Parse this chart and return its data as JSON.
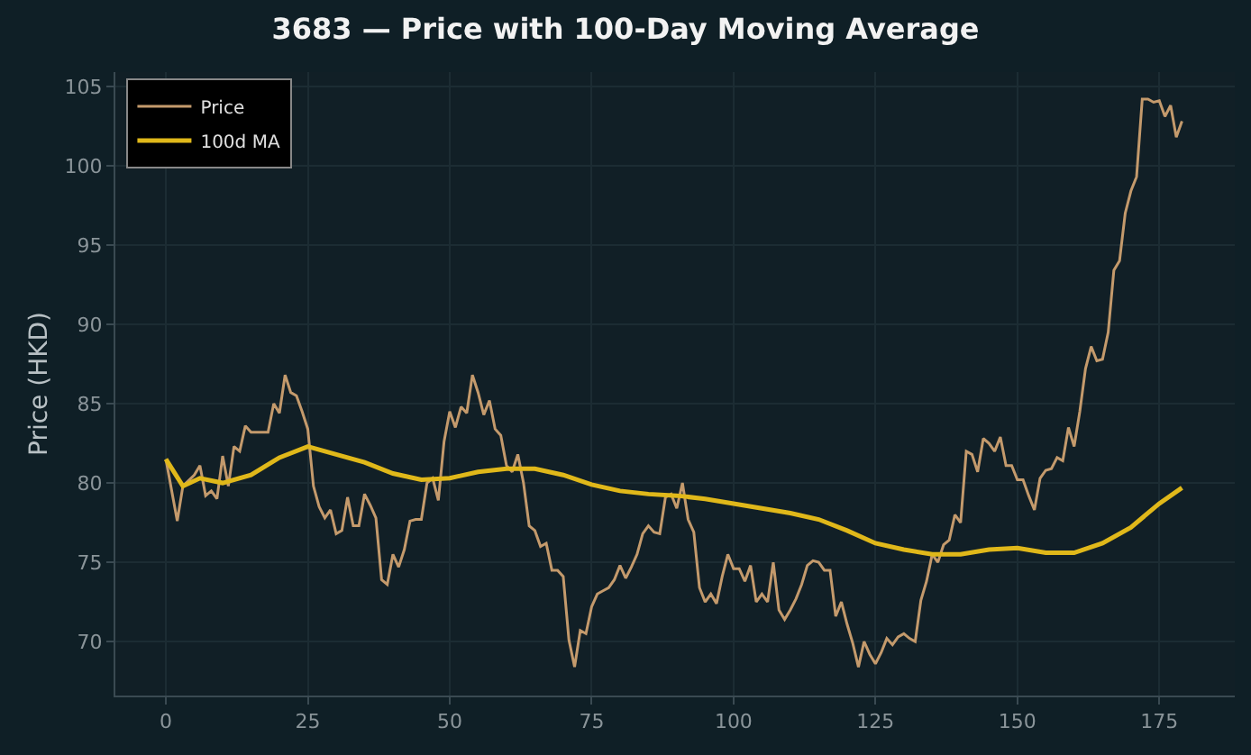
{
  "chart_data": {
    "type": "line",
    "title": "3683 — Price with 100-Day Moving Average",
    "ylabel": "Price (HKD)",
    "xlim": [
      -8.9,
      188.3
    ],
    "xticks": [
      0,
      25,
      50,
      75,
      100,
      125,
      150,
      175
    ],
    "ylim": [
      66.6,
      105.9
    ],
    "yticks": [
      70,
      75,
      80,
      85,
      90,
      95,
      100,
      105
    ],
    "grid": true,
    "legend": "top left",
    "series": [
      {
        "name": "Price",
        "color": "#c49a6c",
        "x": [
          0,
          2,
          3,
          5,
          6,
          7,
          8,
          9,
          10,
          11,
          12,
          13,
          14,
          15,
          17,
          18,
          19,
          20,
          21,
          22,
          23,
          24,
          25,
          26,
          27,
          28,
          29,
          30,
          31,
          32,
          33,
          34,
          35,
          36,
          37,
          38,
          39,
          40,
          41,
          42,
          43,
          44,
          45,
          46,
          47,
          48,
          49,
          50,
          51,
          52,
          53,
          54,
          55,
          56,
          57,
          58,
          59,
          60,
          61,
          62,
          63,
          64,
          65,
          66,
          67,
          68,
          69,
          70,
          71,
          72,
          73,
          74,
          75,
          76,
          77,
          78,
          79,
          80,
          81,
          82,
          83,
          84,
          85,
          86,
          87,
          88,
          89,
          90,
          91,
          92,
          93,
          94,
          95,
          96,
          97,
          98,
          99,
          100,
          101,
          102,
          103,
          104,
          105,
          106,
          107,
          108,
          109,
          110,
          111,
          112,
          113,
          114,
          115,
          116,
          117,
          118,
          119,
          120,
          121,
          122,
          123,
          124,
          125,
          126,
          127,
          128,
          129,
          130,
          131,
          132,
          133,
          134,
          135,
          136,
          137,
          138,
          139,
          140,
          141,
          142,
          143,
          144,
          145,
          146,
          147,
          148,
          149,
          150,
          151,
          152,
          153,
          154,
          155,
          156,
          157,
          158,
          159,
          160,
          161,
          162,
          163,
          164,
          165,
          166,
          167,
          168,
          169,
          170,
          171,
          172,
          173,
          174,
          175,
          176,
          177,
          178,
          179
        ],
        "values": [
          81.5,
          77.6,
          79.8,
          80.5,
          81.1,
          79.2,
          79.5,
          79.0,
          81.7,
          79.8,
          82.3,
          82.0,
          83.6,
          83.2,
          83.2,
          83.2,
          85.0,
          84.4,
          86.8,
          85.7,
          85.5,
          84.5,
          83.4,
          79.8,
          78.5,
          77.8,
          78.3,
          76.8,
          77.0,
          79.1,
          77.3,
          77.3,
          79.3,
          78.6,
          77.8,
          73.9,
          73.6,
          75.5,
          74.7,
          75.8,
          77.6,
          77.7,
          77.7,
          80.0,
          80.3,
          78.9,
          82.6,
          84.5,
          83.5,
          84.8,
          84.4,
          86.8,
          85.7,
          84.3,
          85.2,
          83.4,
          83.0,
          81.1,
          80.7,
          81.8,
          80.0,
          77.3,
          77.0,
          76.0,
          76.2,
          74.5,
          74.5,
          74.1,
          70.1,
          68.4,
          70.7,
          70.5,
          72.2,
          73.0,
          73.2,
          73.4,
          73.9,
          74.8,
          74.0,
          74.7,
          75.5,
          76.8,
          77.3,
          76.9,
          76.8,
          79.1,
          79.3,
          78.4,
          80.0,
          77.7,
          76.9,
          73.4,
          72.5,
          73.0,
          72.4,
          74.1,
          75.5,
          74.6,
          74.6,
          73.8,
          74.8,
          72.5,
          73.0,
          72.5,
          75.0,
          72.0,
          71.4,
          72.0,
          72.7,
          73.6,
          74.8,
          75.1,
          75.0,
          74.5,
          74.5,
          71.6,
          72.5,
          71.1,
          69.9,
          68.4,
          70.0,
          69.2,
          68.6,
          69.3,
          70.2,
          69.8,
          70.3,
          70.5,
          70.2,
          70.0,
          72.6,
          73.8,
          75.5,
          75.0,
          76.1,
          76.4,
          78.0,
          77.5,
          82.0,
          81.8,
          80.7,
          82.8,
          82.5,
          82.0,
          82.9,
          81.1,
          81.1,
          80.2,
          80.2,
          79.2,
          78.3,
          80.3,
          80.8,
          80.9,
          81.6,
          81.4,
          83.5,
          82.3,
          84.5,
          87.2,
          88.6,
          87.7,
          87.8,
          89.5,
          93.4,
          94.0,
          97.0,
          98.4,
          99.3,
          104.2,
          104.2,
          104.0,
          104.1,
          103.1,
          103.8,
          101.8,
          102.8
        ]
      },
      {
        "name": "100d MA",
        "color": "#e0b81a",
        "x": [
          0,
          3,
          6,
          10,
          15,
          20,
          25,
          30,
          35,
          40,
          45,
          50,
          55,
          60,
          65,
          70,
          75,
          80,
          85,
          90,
          95,
          100,
          105,
          110,
          115,
          120,
          125,
          130,
          135,
          140,
          145,
          150,
          155,
          160,
          165,
          170,
          175,
          179
        ],
        "values": [
          81.5,
          79.8,
          80.3,
          80.0,
          80.5,
          81.6,
          82.3,
          81.8,
          81.3,
          80.6,
          80.2,
          80.3,
          80.7,
          80.9,
          80.9,
          80.5,
          79.9,
          79.5,
          79.3,
          79.2,
          79.0,
          78.7,
          78.4,
          78.1,
          77.7,
          77.0,
          76.2,
          75.8,
          75.5,
          75.5,
          75.8,
          75.9,
          75.6,
          75.6,
          76.2,
          77.2,
          78.7,
          79.7
        ]
      }
    ]
  }
}
